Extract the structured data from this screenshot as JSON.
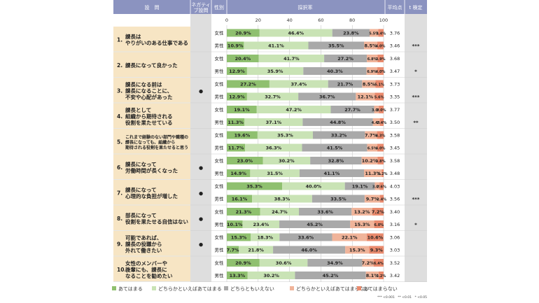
{
  "colors": {
    "header_bg": "#8b93c0",
    "question_bg": "#f7e5c4",
    "stripe_bg": "#dedede",
    "grid": "#bbbbbb",
    "series": [
      "#8fc06f",
      "#c9e3b5",
      "#a9a9a9",
      "#f0b49a",
      "#e98a6d"
    ]
  },
  "header": {
    "question": "設　問",
    "negative": "ネガティブ設問",
    "gender": "性別",
    "rate": "採択率",
    "avg": "平均点",
    "ttest": "t 検定"
  },
  "legend": [
    "あてはまる",
    "どちらかといえばあてはまる",
    "どちらともいえない",
    "どちらかといえばあてはまらない",
    "あてはまらない"
  ],
  "footnote": "*** <0.001　** <0.01　* <0.05",
  "chart_data": {
    "type": "bar",
    "stacked": true,
    "orientation": "horizontal",
    "xlim": [
      0,
      100
    ],
    "xticks": [
      0,
      20,
      40,
      60,
      80,
      100
    ],
    "series_names": [
      "あてはまる",
      "どちらかといえばあてはまる",
      "どちらともいえない",
      "どちらかといえばあてはまらない",
      "あてはまらない"
    ],
    "questions": [
      {
        "num": "1.",
        "text": [
          "課長は",
          "やりがいのある仕事である"
        ],
        "negative": "",
        "sig": "***",
        "rows": [
          {
            "gender": "女性",
            "values": [
              20.9,
              46.4,
              23.8,
              5.5,
              3.4
            ],
            "labels": [
              "20.9%",
              "46.4%",
              "23.8%",
              "5.5%",
              "3.4%"
            ],
            "avg": "3.76"
          },
          {
            "gender": "男性",
            "values": [
              10.9,
              41.1,
              35.5,
              8.5,
              4.0
            ],
            "labels": [
              "10.9%",
              "41.1%",
              "35.5%",
              "8.5%",
              "4.0%"
            ],
            "avg": "3.46"
          }
        ]
      },
      {
        "num": "2.",
        "text": [
          "課長になって良かった"
        ],
        "negative": "",
        "sig": "*",
        "rows": [
          {
            "gender": "女性",
            "values": [
              20.4,
              41.7,
              27.2,
              6.8,
              3.9
            ],
            "labels": [
              "20.4%",
              "41.7%",
              "27.2%",
              "6.8%",
              "3.9%"
            ],
            "avg": "3.68"
          },
          {
            "gender": "男性",
            "values": [
              12.9,
              35.9,
              40.3,
              6.9,
              4.0
            ],
            "labels": [
              "12.9%",
              "35.9%",
              "40.3%",
              "6.9%",
              "4.0%"
            ],
            "avg": "3.47"
          }
        ]
      },
      {
        "num": "3.",
        "text": [
          "課長になる前は",
          "課長になることに、",
          "不安や心配があった"
        ],
        "negative": "●",
        "sig": "***",
        "rows": [
          {
            "gender": "女性",
            "values": [
              27.2,
              37.4,
              21.7,
              8.5,
              5.1
            ],
            "labels": [
              "27.2%",
              "37.4%",
              "21.7%",
              "8.5%",
              "5.1%"
            ],
            "avg": "3.73"
          },
          {
            "gender": "男性",
            "values": [
              12.9,
              32.7,
              36.7,
              12.1,
              5.6
            ],
            "labels": [
              "12.9%",
              "32.7%",
              "36.7%",
              "12.1%",
              "5.6%"
            ],
            "avg": "3.35"
          }
        ]
      },
      {
        "num": "4.",
        "text": [
          "課長として",
          "組織から期待される",
          "役割を果たせている"
        ],
        "negative": "",
        "sig": "**",
        "rows": [
          {
            "gender": "女性",
            "values": [
              19.1,
              47.2,
              27.7,
              3.0,
              3.0
            ],
            "labels": [
              "19.1%",
              "47.2%",
              "27.7%",
              "3.0%",
              "3.0%"
            ],
            "avg": "3.77"
          },
          {
            "gender": "男性",
            "values": [
              11.3,
              37.1,
              44.8,
              4.4,
              2.4
            ],
            "labels": [
              "11.3%",
              "37.1%",
              "44.8%",
              "4.4%",
              "2.4%"
            ],
            "avg": "3.50"
          }
        ]
      },
      {
        "num": "5.",
        "text": [
          "これまで経験のない部門や職種の",
          "課長になっても、組織から",
          "期待される役割を果たせると思う"
        ],
        "negative": "",
        "sig": "",
        "rows": [
          {
            "gender": "女性",
            "values": [
              19.6,
              35.3,
              33.2,
              7.7,
              4.3
            ],
            "labels": [
              "19.6%",
              "35.3%",
              "33.2%",
              "7.7%",
              "4.3%"
            ],
            "avg": "3.58"
          },
          {
            "gender": "男性",
            "values": [
              11.7,
              36.3,
              41.5,
              6.5,
              4.0
            ],
            "labels": [
              "11.7%",
              "36.3%",
              "41.5%",
              "6.5%",
              "4.0%"
            ],
            "avg": "3.45"
          }
        ]
      },
      {
        "num": "6.",
        "text": [
          "課長になって",
          "労働時間が長くなった"
        ],
        "negative": "●",
        "sig": "",
        "rows": [
          {
            "gender": "女性",
            "values": [
              23.0,
              30.2,
              32.8,
              10.2,
              3.8
            ],
            "labels": [
              "23.0%",
              "30.2%",
              "32.8%",
              "10.2%",
              "3.8%"
            ],
            "avg": "3.58"
          },
          {
            "gender": "男性",
            "values": [
              14.9,
              31.5,
              41.1,
              11.3,
              1.2
            ],
            "labels": [
              "14.9%",
              "31.5%",
              "41.1%",
              "11.3%",
              "1.2%"
            ],
            "avg": "3.48"
          }
        ]
      },
      {
        "num": "7.",
        "text": [
          "課長になって",
          "心理的な負担が増した"
        ],
        "negative": "●",
        "sig": "***",
        "rows": [
          {
            "gender": "女性",
            "values": [
              35.3,
              40.0,
              19.1,
              3.0,
              2.6
            ],
            "labels": [
              "35.3%",
              "40.0%",
              "19.1%",
              "3.0%",
              "2.6%"
            ],
            "avg": "4.03"
          },
          {
            "gender": "男性",
            "values": [
              16.1,
              38.3,
              33.5,
              9.7,
              2.4
            ],
            "labels": [
              "16.1%",
              "38.3%",
              "33.5%",
              "9.7%",
              "2.4%"
            ],
            "avg": "3.56"
          }
        ]
      },
      {
        "num": "8.",
        "text": [
          "部長になって",
          "役割を果たせる自信はない"
        ],
        "negative": "●",
        "sig": "*",
        "rows": [
          {
            "gender": "女性",
            "values": [
              21.3,
              24.7,
              33.6,
              13.2,
              7.2
            ],
            "labels": [
              "21.3%",
              "24.7%",
              "33.6%",
              "13.2%",
              "7.2%"
            ],
            "avg": "3.40"
          },
          {
            "gender": "男性",
            "values": [
              10.1,
              23.4,
              45.2,
              15.3,
              6.0
            ],
            "labels": [
              "10.1%",
              "23.4%",
              "45.2%",
              "15.3%",
              "6.0%"
            ],
            "avg": "3.16"
          }
        ]
      },
      {
        "num": "9.",
        "text": [
          "可能であれば、",
          "課長の役職から",
          "外れて働きたい"
        ],
        "negative": "●",
        "sig": "",
        "rows": [
          {
            "gender": "女性",
            "values": [
              15.3,
              18.3,
              33.6,
              22.1,
              10.6
            ],
            "labels": [
              "15.3%",
              "18.3%",
              "33.6%",
              "22.1%",
              "10.6%"
            ],
            "avg": "3.06"
          },
          {
            "gender": "男性",
            "values": [
              7.7,
              21.8,
              46.0,
              15.3,
              9.3
            ],
            "labels": [
              "7.7%",
              "21.8%",
              "46.0%",
              "15.3%",
              "9.3%"
            ],
            "avg": "3.03"
          }
        ]
      },
      {
        "num": "10.",
        "text": [
          "女性のメンバーや",
          "後輩にも、課長に",
          "なることを勧めたい"
        ],
        "negative": "",
        "sig": "",
        "rows": [
          {
            "gender": "女性",
            "values": [
              20.9,
              30.6,
              34.9,
              7.2,
              6.4
            ],
            "labels": [
              "20.9%",
              "30.6%",
              "34.9%",
              "7.2%",
              "6.4%"
            ],
            "avg": "3.52"
          },
          {
            "gender": "男性",
            "values": [
              13.3,
              30.2,
              45.2,
              8.1,
              3.2
            ],
            "labels": [
              "13.3%",
              "30.2%",
              "45.2%",
              "8.1%",
              "3.2%"
            ],
            "avg": "3.42"
          }
        ]
      }
    ]
  }
}
